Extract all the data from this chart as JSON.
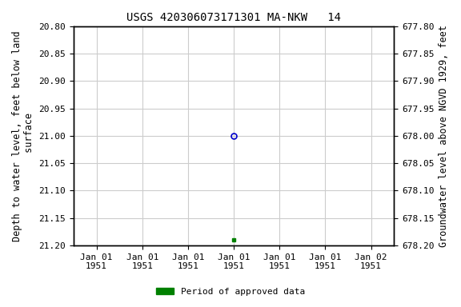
{
  "title": "USGS 420306073171301 MA-NKW   14",
  "ylabel_left": "Depth to water level, feet below land\n surface",
  "ylabel_right": "Groundwater level above NGVD 1929, feet",
  "ylim_left": [
    20.8,
    21.2
  ],
  "ylim_right": [
    678.2,
    677.8
  ],
  "yticks_left": [
    20.8,
    20.85,
    20.9,
    20.95,
    21.0,
    21.05,
    21.1,
    21.15,
    21.2
  ],
  "yticks_right": [
    678.2,
    678.15,
    678.1,
    678.05,
    678.0,
    677.95,
    677.9,
    677.85,
    677.8
  ],
  "open_circle_value": 21.0,
  "filled_square_value": 21.19,
  "open_circle_color": "#0000cc",
  "filled_square_color": "#008000",
  "background_color": "#ffffff",
  "grid_color": "#cccccc",
  "legend_label": "Period of approved data",
  "legend_color": "#008000",
  "font_family": "monospace",
  "title_fontsize": 10,
  "tick_fontsize": 8,
  "label_fontsize": 8.5
}
